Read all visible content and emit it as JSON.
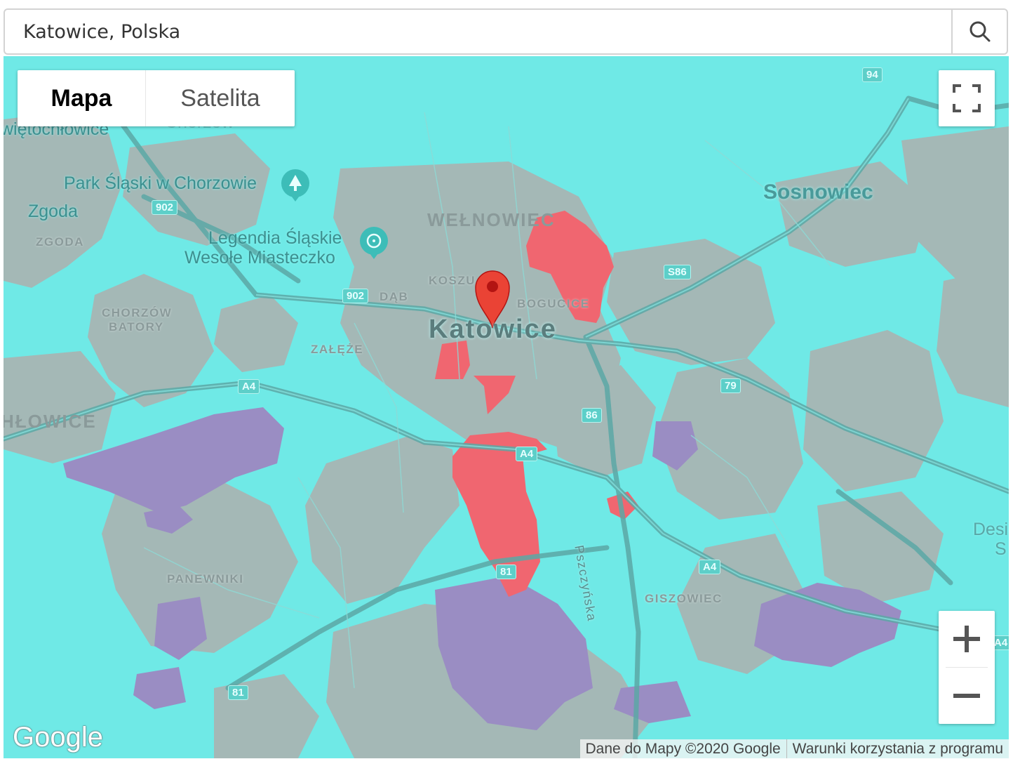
{
  "search": {
    "value": "Katowice, Polska"
  },
  "map_type": {
    "map_label": "Mapa",
    "satellite_label": "Satelita",
    "selected": "Mapa"
  },
  "labels": {
    "swietochlowice": "więtochłowice",
    "chorzow": "Chorzów",
    "park": "Park Śląski w Chorzowie",
    "zgoda_poi": "Zgoda",
    "zgoda": "ZGODA",
    "legendia": "Legendia Śląskie",
    "wesole": "Wesołe Miasteczko",
    "welnowiec": "WEŁNOWIEC",
    "koszutka": "KOSZU",
    "dab": "DĄB",
    "bogucice": "BOGUCICE",
    "katowice": "Katowice",
    "chorzow_batory_1": "CHORZÓW",
    "chorzow_batory_2": "BATORY",
    "zaleze": "ZAŁĘŻE",
    "sosnowiec": "Sosnowiec",
    "ochlowice": "HŁOWICE",
    "panewniki": "PANEWNIKI",
    "giszowiec": "GISZOWIEC",
    "pszczynska": "Pszczyńska",
    "design_1": "Design",
    "design_2": "S"
  },
  "road_shields": {
    "r94": "94",
    "r902a": "902",
    "r902b": "902",
    "s86": "S86",
    "a4a": "A4",
    "a4b": "A4",
    "a4c": "A4",
    "a4d": "A4",
    "r79": "79",
    "r86": "86",
    "r81a": "81",
    "r81b": "81"
  },
  "icons": {
    "search": "search-icon",
    "fullscreen": "fullscreen-icon",
    "zoom_in": "plus-icon",
    "zoom_out": "minus-icon",
    "marker": "map-pin-icon",
    "park": "tree-icon",
    "amusement": "ferris-wheel-icon"
  },
  "colors": {
    "coverage_base": "#6fe9e6",
    "coverage_gray": "#a4b8b6",
    "coverage_red": "#f06670",
    "coverage_purple": "#9a8dc3",
    "marker": "#ea4335"
  },
  "branding": {
    "google": "Google"
  },
  "attribution": {
    "map_data": "Dane do Mapy ©2020 Google",
    "terms": "Warunki korzystania z programu"
  }
}
